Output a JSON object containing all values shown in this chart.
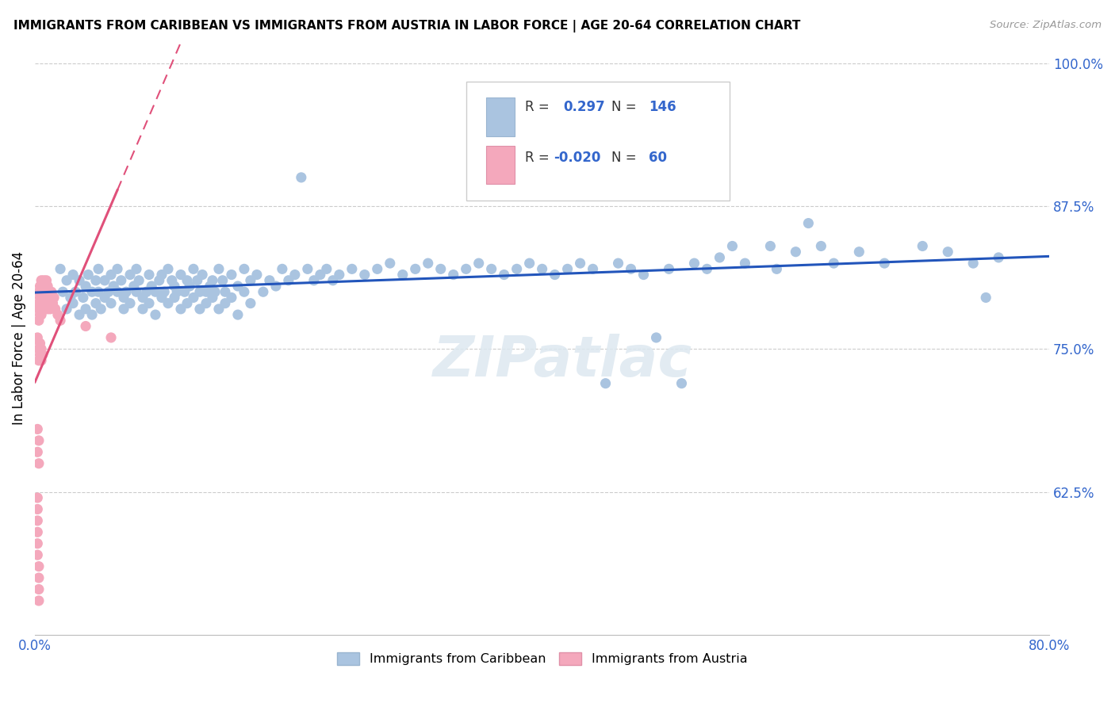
{
  "title": "IMMIGRANTS FROM CARIBBEAN VS IMMIGRANTS FROM AUSTRIA IN LABOR FORCE | AGE 20-64 CORRELATION CHART",
  "source": "Source: ZipAtlas.com",
  "ylabel": "In Labor Force | Age 20-64",
  "xlim": [
    0.0,
    0.8
  ],
  "ylim": [
    0.5,
    1.02
  ],
  "xticks": [
    0.0,
    0.1,
    0.2,
    0.3,
    0.4,
    0.5,
    0.6,
    0.7,
    0.8
  ],
  "xticklabels": [
    "0.0%",
    "",
    "",
    "",
    "",
    "",
    "",
    "",
    "80.0%"
  ],
  "ytick_positions": [
    0.625,
    0.75,
    0.875,
    1.0
  ],
  "ytick_labels": [
    "62.5%",
    "75.0%",
    "87.5%",
    "100.0%"
  ],
  "caribbean_color": "#aac4e0",
  "austria_color": "#f4a8bc",
  "caribbean_R": 0.297,
  "caribbean_N": 146,
  "austria_R": -0.02,
  "austria_N": 60,
  "legend_label_caribbean": "Immigrants from Caribbean",
  "legend_label_austria": "Immigrants from Austria",
  "watermark": "ZIPatlас",
  "caribbean_line_color": "#2255bb",
  "austria_line_color": "#e0507a",
  "caribbean_scatter": [
    [
      0.02,
      0.82
    ],
    [
      0.022,
      0.8
    ],
    [
      0.025,
      0.785
    ],
    [
      0.025,
      0.81
    ],
    [
      0.028,
      0.795
    ],
    [
      0.03,
      0.815
    ],
    [
      0.03,
      0.79
    ],
    [
      0.032,
      0.8
    ],
    [
      0.035,
      0.81
    ],
    [
      0.035,
      0.78
    ],
    [
      0.038,
      0.795
    ],
    [
      0.04,
      0.805
    ],
    [
      0.04,
      0.785
    ],
    [
      0.042,
      0.815
    ],
    [
      0.045,
      0.8
    ],
    [
      0.045,
      0.78
    ],
    [
      0.048,
      0.81
    ],
    [
      0.048,
      0.79
    ],
    [
      0.05,
      0.8
    ],
    [
      0.05,
      0.82
    ],
    [
      0.052,
      0.785
    ],
    [
      0.055,
      0.81
    ],
    [
      0.055,
      0.795
    ],
    [
      0.058,
      0.8
    ],
    [
      0.06,
      0.815
    ],
    [
      0.06,
      0.79
    ],
    [
      0.062,
      0.805
    ],
    [
      0.065,
      0.8
    ],
    [
      0.065,
      0.82
    ],
    [
      0.068,
      0.81
    ],
    [
      0.07,
      0.795
    ],
    [
      0.07,
      0.785
    ],
    [
      0.072,
      0.8
    ],
    [
      0.075,
      0.815
    ],
    [
      0.075,
      0.79
    ],
    [
      0.078,
      0.805
    ],
    [
      0.08,
      0.8
    ],
    [
      0.08,
      0.82
    ],
    [
      0.082,
      0.81
    ],
    [
      0.085,
      0.795
    ],
    [
      0.085,
      0.785
    ],
    [
      0.088,
      0.8
    ],
    [
      0.09,
      0.815
    ],
    [
      0.09,
      0.79
    ],
    [
      0.092,
      0.805
    ],
    [
      0.095,
      0.8
    ],
    [
      0.095,
      0.78
    ],
    [
      0.098,
      0.81
    ],
    [
      0.1,
      0.795
    ],
    [
      0.1,
      0.815
    ],
    [
      0.102,
      0.8
    ],
    [
      0.105,
      0.82
    ],
    [
      0.105,
      0.79
    ],
    [
      0.108,
      0.81
    ],
    [
      0.11,
      0.805
    ],
    [
      0.11,
      0.795
    ],
    [
      0.112,
      0.8
    ],
    [
      0.115,
      0.815
    ],
    [
      0.115,
      0.785
    ],
    [
      0.118,
      0.8
    ],
    [
      0.12,
      0.81
    ],
    [
      0.12,
      0.79
    ],
    [
      0.122,
      0.805
    ],
    [
      0.125,
      0.795
    ],
    [
      0.125,
      0.82
    ],
    [
      0.128,
      0.81
    ],
    [
      0.13,
      0.8
    ],
    [
      0.13,
      0.785
    ],
    [
      0.132,
      0.815
    ],
    [
      0.135,
      0.8
    ],
    [
      0.135,
      0.79
    ],
    [
      0.138,
      0.805
    ],
    [
      0.14,
      0.81
    ],
    [
      0.14,
      0.795
    ],
    [
      0.142,
      0.8
    ],
    [
      0.145,
      0.82
    ],
    [
      0.145,
      0.785
    ],
    [
      0.148,
      0.81
    ],
    [
      0.15,
      0.8
    ],
    [
      0.15,
      0.79
    ],
    [
      0.155,
      0.815
    ],
    [
      0.155,
      0.795
    ],
    [
      0.16,
      0.805
    ],
    [
      0.16,
      0.78
    ],
    [
      0.165,
      0.8
    ],
    [
      0.165,
      0.82
    ],
    [
      0.17,
      0.81
    ],
    [
      0.17,
      0.79
    ],
    [
      0.175,
      0.815
    ],
    [
      0.18,
      0.8
    ],
    [
      0.185,
      0.81
    ],
    [
      0.19,
      0.805
    ],
    [
      0.195,
      0.82
    ],
    [
      0.2,
      0.81
    ],
    [
      0.205,
      0.815
    ],
    [
      0.21,
      0.9
    ],
    [
      0.215,
      0.82
    ],
    [
      0.22,
      0.81
    ],
    [
      0.225,
      0.815
    ],
    [
      0.23,
      0.82
    ],
    [
      0.235,
      0.81
    ],
    [
      0.24,
      0.815
    ],
    [
      0.25,
      0.82
    ],
    [
      0.26,
      0.815
    ],
    [
      0.27,
      0.82
    ],
    [
      0.28,
      0.825
    ],
    [
      0.29,
      0.815
    ],
    [
      0.3,
      0.82
    ],
    [
      0.31,
      0.825
    ],
    [
      0.32,
      0.82
    ],
    [
      0.33,
      0.815
    ],
    [
      0.34,
      0.82
    ],
    [
      0.35,
      0.825
    ],
    [
      0.36,
      0.82
    ],
    [
      0.37,
      0.815
    ],
    [
      0.38,
      0.82
    ],
    [
      0.39,
      0.825
    ],
    [
      0.4,
      0.82
    ],
    [
      0.41,
      0.815
    ],
    [
      0.42,
      0.82
    ],
    [
      0.43,
      0.825
    ],
    [
      0.44,
      0.82
    ],
    [
      0.45,
      0.72
    ],
    [
      0.46,
      0.825
    ],
    [
      0.47,
      0.82
    ],
    [
      0.48,
      0.815
    ],
    [
      0.49,
      0.76
    ],
    [
      0.5,
      0.82
    ],
    [
      0.51,
      0.72
    ],
    [
      0.52,
      0.825
    ],
    [
      0.53,
      0.82
    ],
    [
      0.54,
      0.83
    ],
    [
      0.55,
      0.84
    ],
    [
      0.56,
      0.825
    ],
    [
      0.58,
      0.84
    ],
    [
      0.585,
      0.82
    ],
    [
      0.6,
      0.835
    ],
    [
      0.61,
      0.86
    ],
    [
      0.62,
      0.84
    ],
    [
      0.63,
      0.825
    ],
    [
      0.65,
      0.835
    ],
    [
      0.67,
      0.825
    ],
    [
      0.7,
      0.84
    ],
    [
      0.72,
      0.835
    ],
    [
      0.74,
      0.825
    ],
    [
      0.75,
      0.795
    ],
    [
      0.76,
      0.83
    ]
  ],
  "austria_scatter": [
    [
      0.003,
      0.8
    ],
    [
      0.003,
      0.79
    ],
    [
      0.003,
      0.785
    ],
    [
      0.003,
      0.775
    ],
    [
      0.004,
      0.805
    ],
    [
      0.004,
      0.795
    ],
    [
      0.004,
      0.785
    ],
    [
      0.004,
      0.78
    ],
    [
      0.005,
      0.81
    ],
    [
      0.005,
      0.8
    ],
    [
      0.005,
      0.79
    ],
    [
      0.005,
      0.78
    ],
    [
      0.006,
      0.805
    ],
    [
      0.006,
      0.795
    ],
    [
      0.006,
      0.785
    ],
    [
      0.007,
      0.81
    ],
    [
      0.007,
      0.8
    ],
    [
      0.007,
      0.79
    ],
    [
      0.008,
      0.805
    ],
    [
      0.008,
      0.795
    ],
    [
      0.008,
      0.785
    ],
    [
      0.009,
      0.81
    ],
    [
      0.009,
      0.8
    ],
    [
      0.01,
      0.805
    ],
    [
      0.01,
      0.795
    ],
    [
      0.01,
      0.785
    ],
    [
      0.011,
      0.8
    ],
    [
      0.011,
      0.79
    ],
    [
      0.012,
      0.795
    ],
    [
      0.012,
      0.785
    ],
    [
      0.013,
      0.8
    ],
    [
      0.014,
      0.79
    ],
    [
      0.015,
      0.795
    ],
    [
      0.016,
      0.785
    ],
    [
      0.018,
      0.78
    ],
    [
      0.02,
      0.775
    ],
    [
      0.002,
      0.76
    ],
    [
      0.003,
      0.75
    ],
    [
      0.003,
      0.74
    ],
    [
      0.004,
      0.755
    ],
    [
      0.004,
      0.745
    ],
    [
      0.005,
      0.75
    ],
    [
      0.005,
      0.74
    ],
    [
      0.006,
      0.745
    ],
    [
      0.002,
      0.68
    ],
    [
      0.002,
      0.66
    ],
    [
      0.003,
      0.67
    ],
    [
      0.003,
      0.65
    ],
    [
      0.002,
      0.62
    ],
    [
      0.002,
      0.61
    ],
    [
      0.002,
      0.6
    ],
    [
      0.002,
      0.59
    ],
    [
      0.002,
      0.58
    ],
    [
      0.002,
      0.57
    ],
    [
      0.003,
      0.56
    ],
    [
      0.003,
      0.55
    ],
    [
      0.003,
      0.54
    ],
    [
      0.003,
      0.53
    ],
    [
      0.04,
      0.77
    ],
    [
      0.06,
      0.76
    ]
  ]
}
